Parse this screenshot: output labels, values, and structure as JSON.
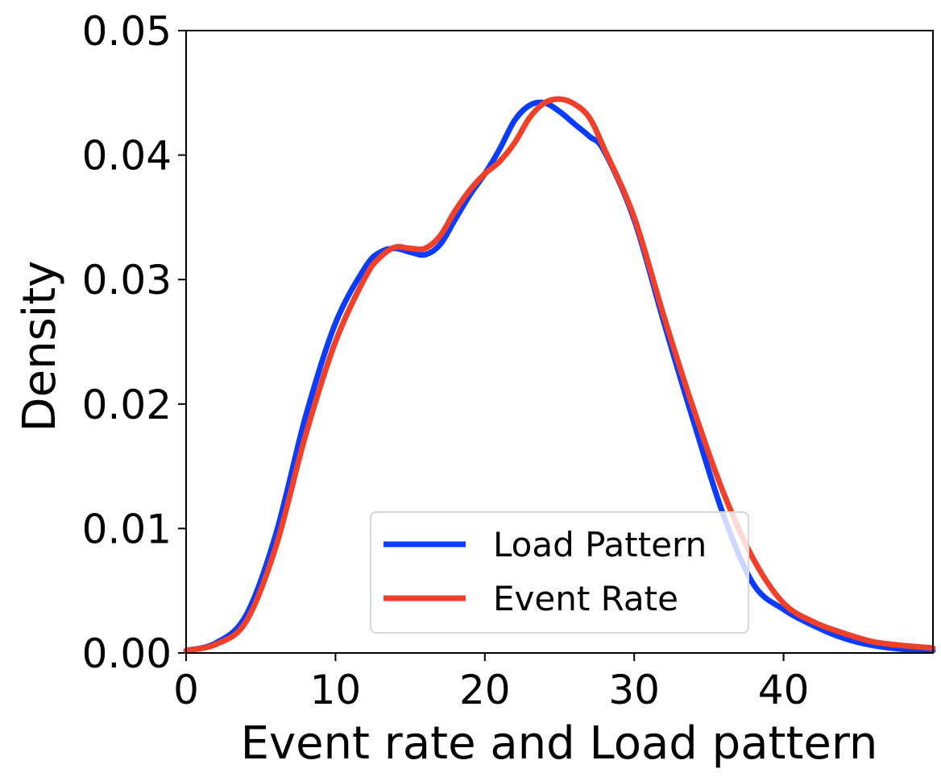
{
  "chart_data": {
    "type": "line",
    "title": "",
    "xlabel": "Event rate and Load pattern",
    "ylabel": "Density",
    "xlim": [
      0,
      50
    ],
    "ylim": [
      0,
      0.05
    ],
    "x_ticks": [
      0,
      10,
      20,
      30,
      40
    ],
    "x_tick_labels": [
      "0",
      "10",
      "20",
      "30",
      "40"
    ],
    "y_ticks": [
      0,
      0.01,
      0.02,
      0.03,
      0.04,
      0.05
    ],
    "y_tick_labels": [
      "0.00",
      "0.01",
      "0.02",
      "0.03",
      "0.04",
      "0.05"
    ],
    "grid": false,
    "legend_position": "lower center",
    "series": [
      {
        "name": "Load Pattern",
        "color": "#0a3cff",
        "points": [
          [
            0,
            0.0002
          ],
          [
            2,
            0.0008
          ],
          [
            4,
            0.003
          ],
          [
            6,
            0.0095
          ],
          [
            8,
            0.019
          ],
          [
            10,
            0.0265
          ],
          [
            12,
            0.031
          ],
          [
            13,
            0.0322
          ],
          [
            14,
            0.0325
          ],
          [
            15,
            0.0322
          ],
          [
            16,
            0.032
          ],
          [
            17,
            0.0328
          ],
          [
            18,
            0.0348
          ],
          [
            19,
            0.0368
          ],
          [
            20,
            0.0385
          ],
          [
            21,
            0.0405
          ],
          [
            22,
            0.0428
          ],
          [
            23,
            0.044
          ],
          [
            24,
            0.0442
          ],
          [
            25,
            0.0435
          ],
          [
            26,
            0.0425
          ],
          [
            27,
            0.0415
          ],
          [
            28,
            0.0403
          ],
          [
            30,
            0.0348
          ],
          [
            32,
            0.0265
          ],
          [
            34,
            0.0185
          ],
          [
            36,
            0.011
          ],
          [
            38,
            0.0055
          ],
          [
            40,
            0.0035
          ],
          [
            42,
            0.0022
          ],
          [
            44,
            0.0012
          ],
          [
            46,
            0.0006
          ],
          [
            48,
            0.0003
          ],
          [
            50,
            0.0002
          ]
        ]
      },
      {
        "name": "Event Rate",
        "color": "#f0402a",
        "points": [
          [
            0,
            0.0002
          ],
          [
            2,
            0.0007
          ],
          [
            4,
            0.0025
          ],
          [
            6,
            0.0085
          ],
          [
            8,
            0.0175
          ],
          [
            10,
            0.025
          ],
          [
            12,
            0.0302
          ],
          [
            13,
            0.0318
          ],
          [
            14,
            0.0326
          ],
          [
            15,
            0.0325
          ],
          [
            16,
            0.0325
          ],
          [
            17,
            0.0335
          ],
          [
            18,
            0.0355
          ],
          [
            19,
            0.0372
          ],
          [
            20,
            0.0385
          ],
          [
            21,
            0.0395
          ],
          [
            22,
            0.041
          ],
          [
            23,
            0.043
          ],
          [
            24,
            0.0442
          ],
          [
            25,
            0.0445
          ],
          [
            26,
            0.0441
          ],
          [
            27,
            0.043
          ],
          [
            28,
            0.0405
          ],
          [
            30,
            0.035
          ],
          [
            32,
            0.027
          ],
          [
            34,
            0.0195
          ],
          [
            36,
            0.0128
          ],
          [
            38,
            0.0075
          ],
          [
            40,
            0.004
          ],
          [
            42,
            0.0025
          ],
          [
            44,
            0.0016
          ],
          [
            46,
            0.0009
          ],
          [
            48,
            0.0006
          ],
          [
            50,
            0.0004
          ]
        ]
      }
    ]
  }
}
